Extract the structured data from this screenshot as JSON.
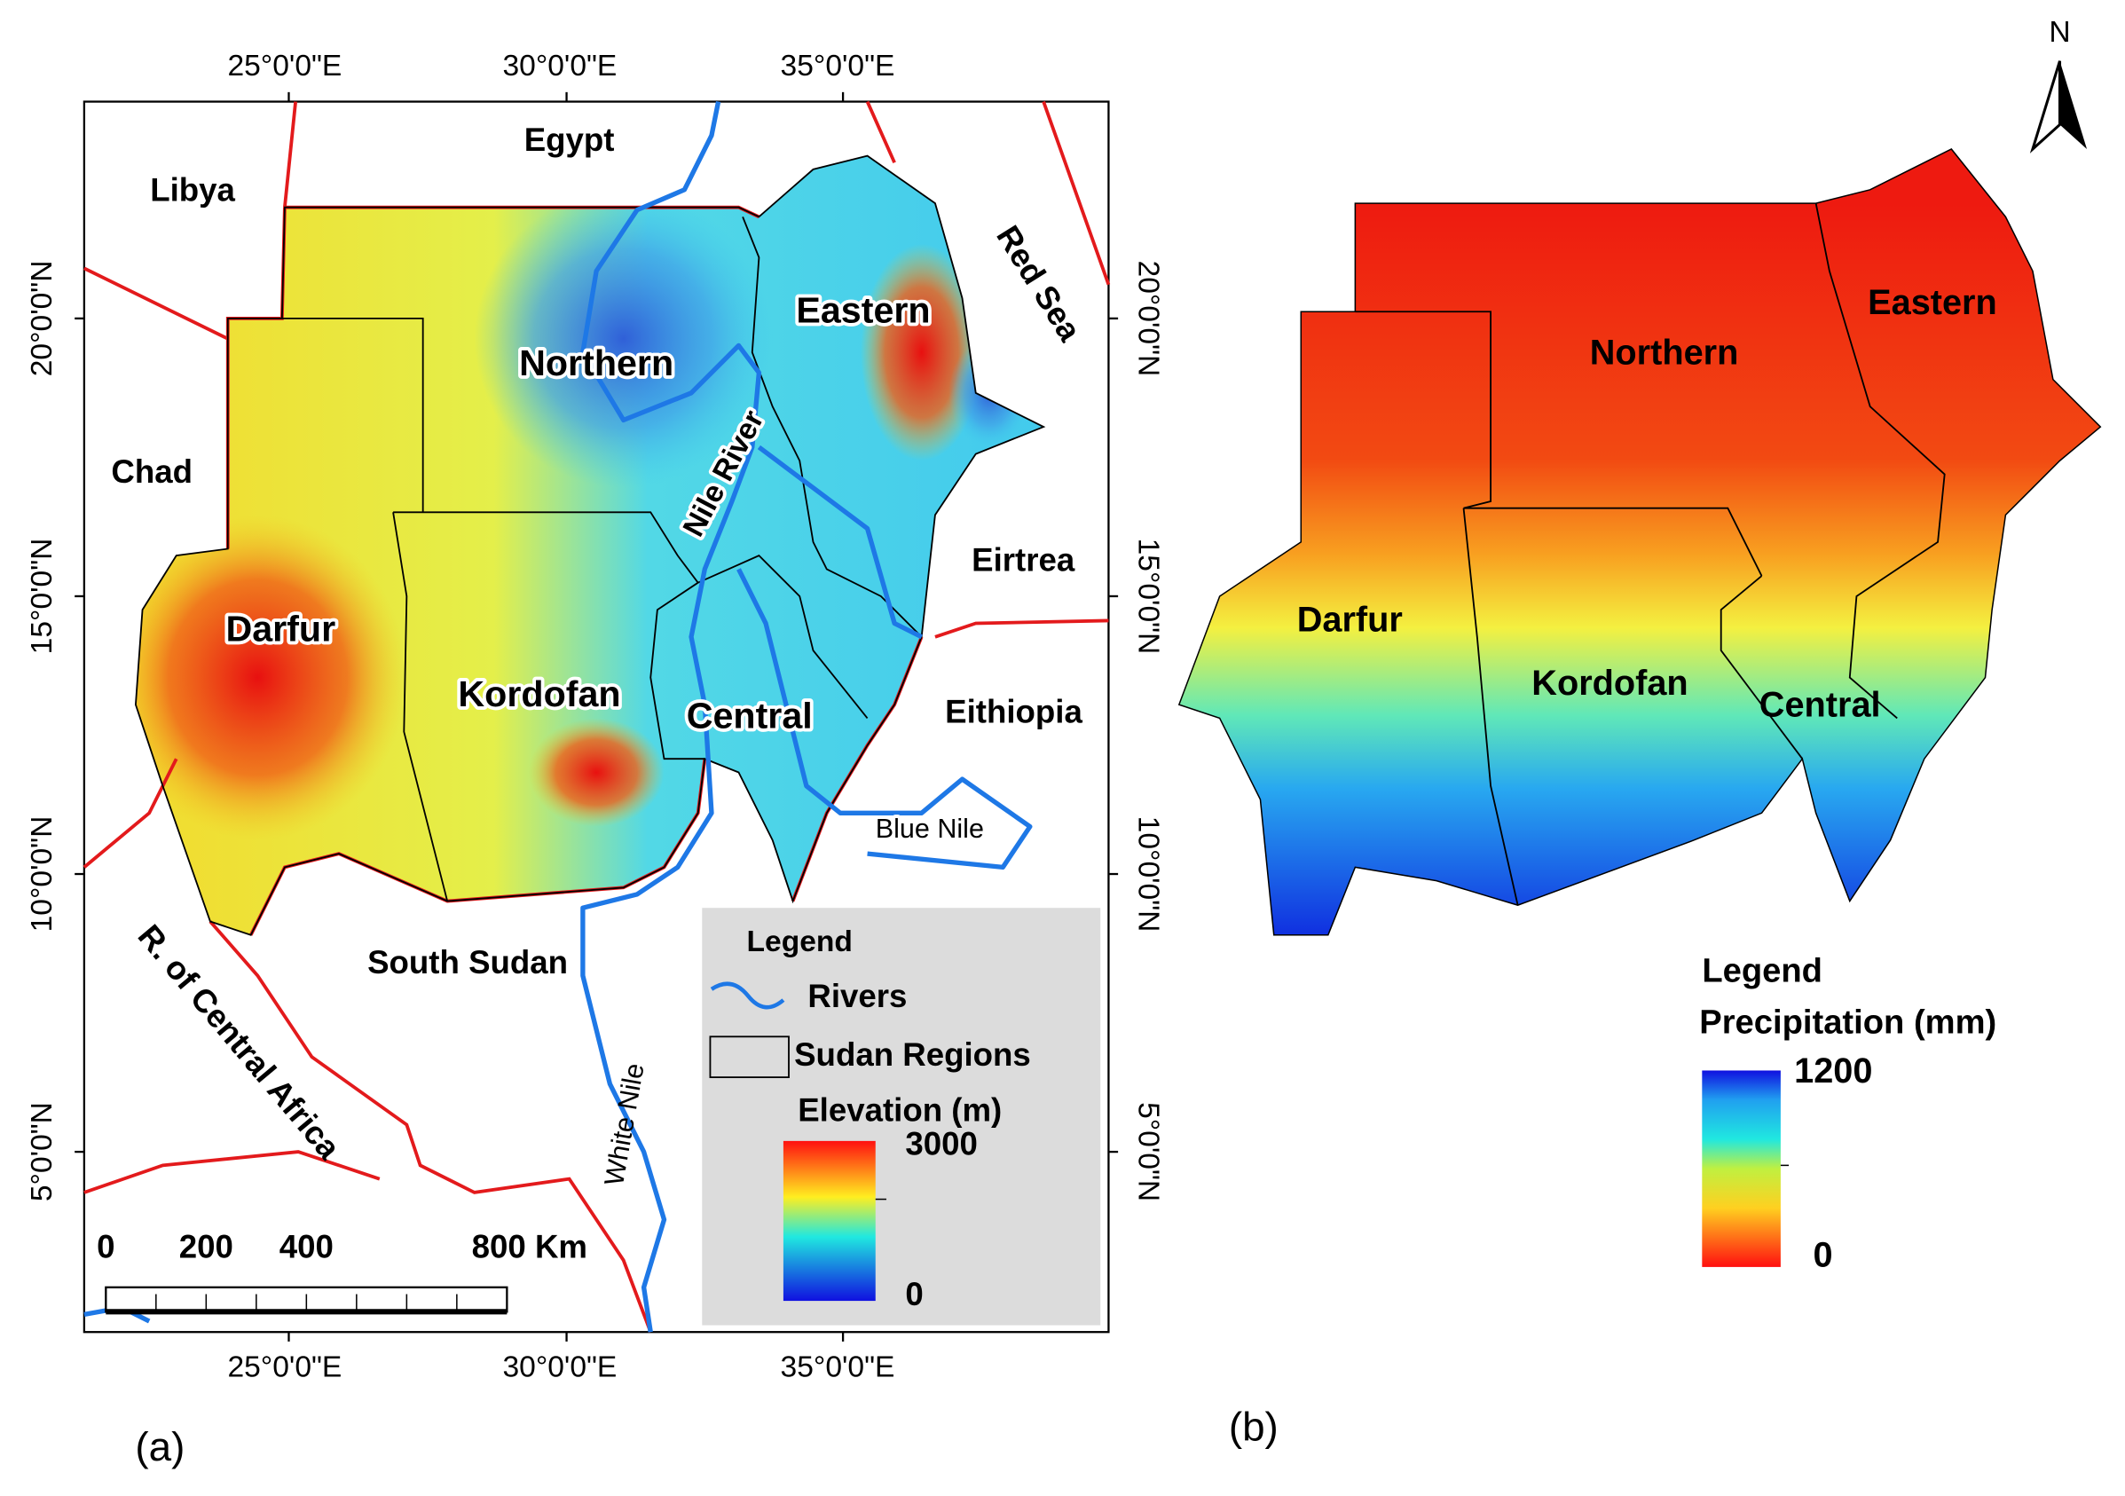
{
  "panel_a": {
    "label": "(a)",
    "lon_ticks": [
      "25°0'0\"E",
      "30°0'0\"E",
      "35°0'0\"E"
    ],
    "lat_ticks": [
      "20°0'0\"N",
      "15°0'0\"N",
      "10°0'0\"N",
      "5°0'0\"N"
    ],
    "countries": [
      "Egypt",
      "Libya",
      "Chad",
      "Red Sea",
      "Eirtrea",
      "Eithiopia",
      "South Sudan",
      "R. of Central Africa"
    ],
    "regions": [
      "Northern",
      "Eastern",
      "Darfur",
      "Kordofan",
      "Central"
    ],
    "rivers": [
      "Nile River",
      "Blue Nile",
      "White Nile"
    ],
    "legend": {
      "title": "Legend",
      "rivers": "Rivers",
      "regions": "Sudan Regions",
      "elevation_title": "Elevation (m)",
      "max": 3000,
      "min": 0
    },
    "scale_bar": [
      "0",
      "200",
      "400",
      "800 Km"
    ]
  },
  "panel_b": {
    "label": "(b)",
    "north": "N",
    "regions": [
      "Northern",
      "Eastern",
      "Darfur",
      "Kordofan",
      "Central"
    ],
    "legend": {
      "title": "Legend",
      "variable": "Precipitation (mm)",
      "max": 1200,
      "min": 0
    }
  }
}
